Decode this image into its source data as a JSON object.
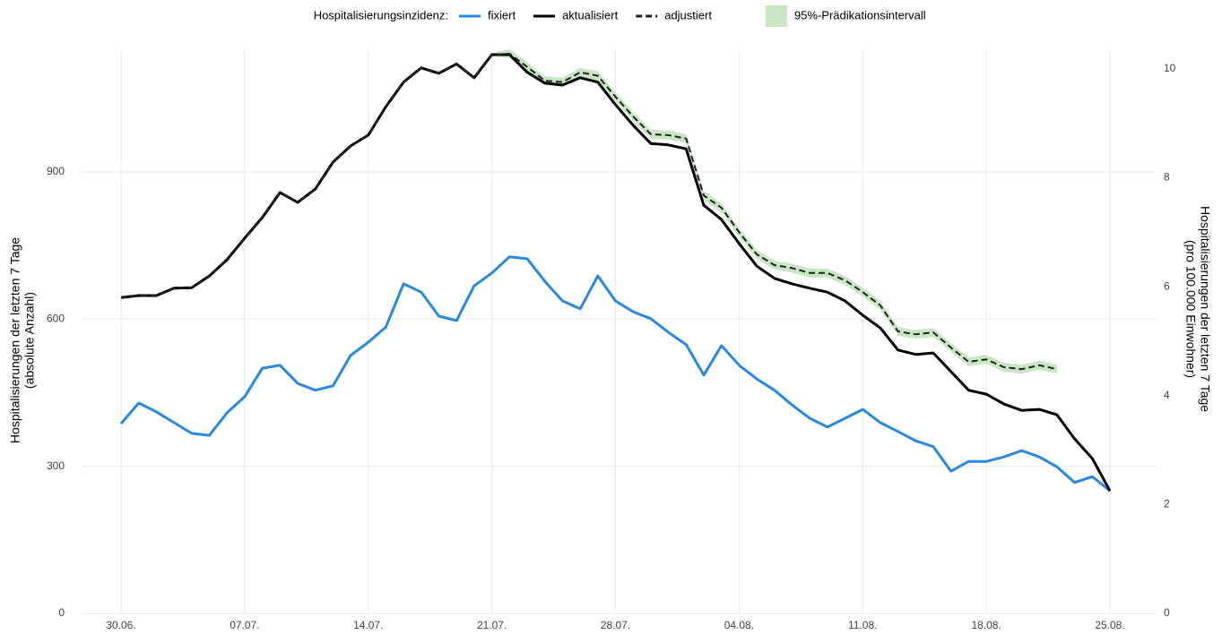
{
  "chart_data": {
    "type": "line",
    "legend_title": "Hospitalisierungsinzidenz:",
    "ylabel": [
      "Hospitalisierungen der letzten 7 Tage",
      "(absolute Anzahl)"
    ],
    "y2label": [
      "Hospitalisierungen der letzten 7 Tage",
      "(pro 100.000 Einwohner)"
    ],
    "categories": [
      "30.06.",
      null,
      null,
      null,
      null,
      null,
      null,
      "07.07.",
      null,
      null,
      null,
      null,
      null,
      null,
      "14.07.",
      null,
      null,
      null,
      null,
      null,
      null,
      "21.07.",
      null,
      null,
      null,
      null,
      null,
      null,
      "28.07.",
      null,
      null,
      null,
      null,
      null,
      null,
      "04.08.",
      null,
      null,
      null,
      null,
      null,
      null,
      "11.08.",
      null,
      null,
      null,
      null,
      null,
      null,
      "18.08.",
      null,
      null,
      null,
      null,
      null,
      null,
      "25.08."
    ],
    "ylim": [
      0,
      1150
    ],
    "yticks": [
      0,
      300,
      600,
      900
    ],
    "y2lim": [
      0,
      10.36
    ],
    "y2ticks": [
      0,
      2,
      4,
      6,
      8,
      10
    ],
    "grid": true,
    "band": {
      "name": "95%-Prädikationsintervall",
      "color": "#c8e6c4",
      "lower": [
        641,
        645,
        645,
        660,
        661,
        685,
        718,
        762,
        804,
        855,
        835,
        862,
        917,
        950,
        972,
        1030,
        1080,
        1109,
        1098,
        1117,
        1089,
        1136,
        1132,
        1105,
        1077,
        1074,
        1094,
        1087,
        1044,
        1004,
        968,
        966,
        959,
        843,
        818,
        768,
        723,
        701,
        695,
        685,
        685,
        670,
        646,
        619,
        566,
        560,
        564,
        533,
        504,
        509,
        493,
        489,
        497,
        489,
        null,
        null,
        null
      ],
      "upper": [
        647,
        651,
        651,
        666,
        667,
        691,
        724,
        768,
        810,
        861,
        841,
        868,
        923,
        956,
        978,
        1036,
        1086,
        1115,
        1104,
        1123,
        1095,
        1142,
        1150,
        1123,
        1095,
        1092,
        1112,
        1105,
        1062,
        1022,
        986,
        984,
        977,
        861,
        836,
        786,
        741,
        719,
        713,
        703,
        703,
        688,
        664,
        637,
        584,
        578,
        582,
        551,
        522,
        527,
        511,
        507,
        515,
        507,
        null,
        null,
        null
      ]
    },
    "series": [
      {
        "name": "fixiert",
        "color": "#2b88e0",
        "dashed": false,
        "values": [
          387,
          429,
          411,
          389,
          367,
          363,
          409,
          442,
          500,
          506,
          469,
          455,
          464,
          526,
          553,
          584,
          672,
          655,
          606,
          597,
          668,
          694,
          727,
          723,
          677,
          637,
          621,
          688,
          637,
          615,
          601,
          573,
          548,
          486,
          546,
          506,
          478,
          455,
          425,
          398,
          380,
          398,
          416,
          389,
          371,
          352,
          340,
          290,
          310,
          310,
          319,
          332,
          319,
          299,
          267,
          279,
          250
        ]
      },
      {
        "name": "aktualisiert",
        "color": "#000000",
        "dashed": false,
        "values": [
          644,
          648,
          648,
          663,
          664,
          688,
          721,
          765,
          807,
          858,
          838,
          865,
          920,
          953,
          975,
          1033,
          1083,
          1112,
          1101,
          1120,
          1092,
          1139,
          1139,
          1103,
          1081,
          1077,
          1092,
          1083,
          1037,
          995,
          958,
          955,
          947,
          832,
          803,
          754,
          708,
          683,
          672,
          663,
          655,
          637,
          608,
          582,
          537,
          528,
          531,
          493,
          455,
          447,
          427,
          414,
          416,
          405,
          356,
          316,
          250
        ]
      },
      {
        "name": "adjustiert",
        "color": "#222222",
        "dashed": true,
        "values": [
          644,
          648,
          648,
          663,
          664,
          688,
          721,
          765,
          807,
          858,
          838,
          865,
          920,
          953,
          975,
          1033,
          1083,
          1112,
          1101,
          1120,
          1092,
          1139,
          1141,
          1114,
          1086,
          1083,
          1103,
          1096,
          1053,
          1013,
          977,
          975,
          968,
          852,
          827,
          777,
          732,
          710,
          704,
          694,
          694,
          679,
          655,
          628,
          575,
          569,
          573,
          542,
          513,
          518,
          502,
          498,
          506,
          498,
          null,
          null,
          null
        ]
      }
    ]
  }
}
